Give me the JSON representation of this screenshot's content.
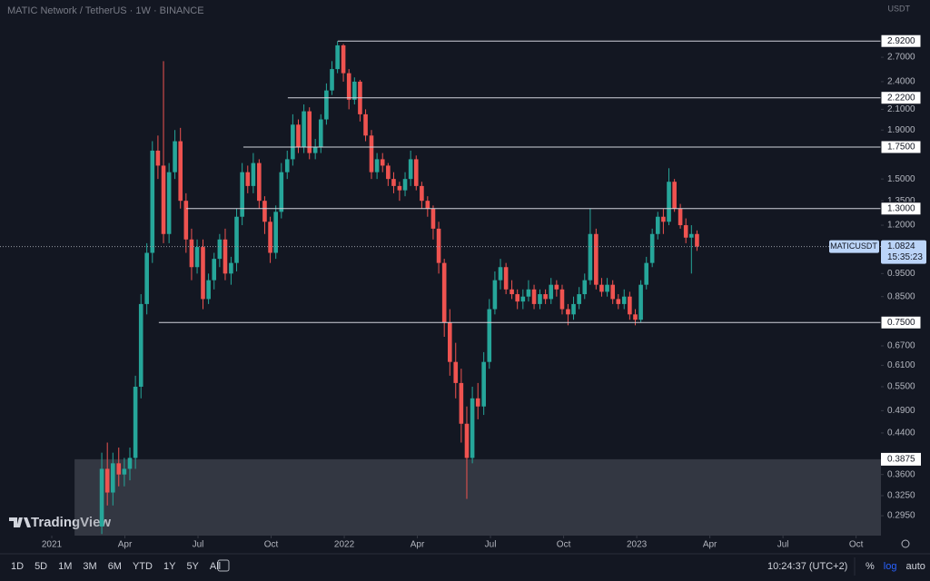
{
  "header": {
    "symbol": "MATIC Network / TetherUS · 1W · BINANCE",
    "currency": "USDT"
  },
  "brand": "TradingView",
  "chart_data": {
    "type": "candlestick",
    "log_scale": true,
    "colors": {
      "up": "#26a69a",
      "down": "#ef5350"
    },
    "xlim": [
      2020.823,
      2023.835
    ],
    "ylim": [
      0.268,
      3.56
    ],
    "xticks": [
      {
        "value": 2021,
        "label": "2021"
      },
      {
        "value": 2021.25,
        "label": "Apr"
      },
      {
        "value": 2021.5,
        "label": "Jul"
      },
      {
        "value": 2021.75,
        "label": "Oct"
      },
      {
        "value": 2022,
        "label": "2022"
      },
      {
        "value": 2022.25,
        "label": "Apr"
      },
      {
        "value": 2022.5,
        "label": "Jul"
      },
      {
        "value": 2022.75,
        "label": "Oct"
      },
      {
        "value": 2023,
        "label": "2023"
      },
      {
        "value": 2023.25,
        "label": "Apr"
      },
      {
        "value": 2023.5,
        "label": "Jul"
      },
      {
        "value": 2023.75,
        "label": "Oct"
      }
    ],
    "yticks": [
      {
        "value": 2.7,
        "label": "2.7000"
      },
      {
        "value": 2.4,
        "label": "2.4000"
      },
      {
        "value": 2.1,
        "label": "2.1000"
      },
      {
        "value": 1.9,
        "label": "1.9000"
      },
      {
        "value": 1.5,
        "label": "1.5000"
      },
      {
        "value": 1.35,
        "label": "1.3500"
      },
      {
        "value": 1.2,
        "label": "1.2000"
      },
      {
        "value": 0.95,
        "label": "0.9500"
      },
      {
        "value": 0.85,
        "label": "0.8500"
      },
      {
        "value": 0.67,
        "label": "0.6700"
      },
      {
        "value": 0.61,
        "label": "0.6100"
      },
      {
        "value": 0.55,
        "label": "0.5500"
      },
      {
        "value": 0.49,
        "label": "0.4900"
      },
      {
        "value": 0.44,
        "label": "0.4400"
      },
      {
        "value": 0.36,
        "label": "0.3600"
      },
      {
        "value": 0.325,
        "label": "0.3250"
      },
      {
        "value": 0.295,
        "label": "0.2950"
      }
    ],
    "x": [
      2021.171,
      2021.19,
      2021.209,
      2021.229,
      2021.248,
      2021.267,
      2021.286,
      2021.305,
      2021.325,
      2021.344,
      2021.363,
      2021.382,
      2021.401,
      2021.421,
      2021.44,
      2021.459,
      2021.478,
      2021.497,
      2021.517,
      2021.536,
      2021.555,
      2021.574,
      2021.593,
      2021.613,
      2021.632,
      2021.651,
      2021.67,
      2021.689,
      2021.709,
      2021.728,
      2021.747,
      2021.766,
      2021.785,
      2021.805,
      2021.824,
      2021.843,
      2021.862,
      2021.881,
      2021.901,
      2021.92,
      2021.939,
      2021.958,
      2021.977,
      2021.997,
      2022.016,
      2022.035,
      2022.054,
      2022.073,
      2022.093,
      2022.112,
      2022.131,
      2022.15,
      2022.169,
      2022.189,
      2022.208,
      2022.227,
      2022.246,
      2022.265,
      2022.285,
      2022.304,
      2022.323,
      2022.342,
      2022.361,
      2022.381,
      2022.4,
      2022.419,
      2022.438,
      2022.457,
      2022.477,
      2022.496,
      2022.515,
      2022.534,
      2022.553,
      2022.573,
      2022.592,
      2022.611,
      2022.63,
      2022.649,
      2022.669,
      2022.688,
      2022.707,
      2022.726,
      2022.745,
      2022.765,
      2022.784,
      2022.803,
      2022.822,
      2022.841,
      2022.861,
      2022.88,
      2022.899,
      2022.918,
      2022.937,
      2022.957,
      2022.976,
      2022.995,
      2023.014,
      2023.033,
      2023.053,
      2023.072,
      2023.091,
      2023.11,
      2023.129,
      2023.149,
      2023.168,
      2023.187,
      2023.206
    ],
    "open": [
      0.28,
      0.37,
      0.33,
      0.38,
      0.36,
      0.37,
      0.39,
      0.55,
      0.82,
      1.05,
      1.72,
      1.6,
      1.15,
      1.55,
      1.8,
      1.35,
      1.12,
      0.98,
      1.08,
      0.84,
      0.92,
      1.02,
      1.12,
      0.95,
      1.0,
      1.25,
      1.55,
      1.45,
      1.62,
      1.35,
      1.22,
      1.05,
      1.28,
      1.55,
      1.65,
      1.95,
      1.75,
      2.08,
      1.7,
      1.75,
      2.0,
      2.3,
      2.55,
      2.86,
      2.5,
      2.2,
      2.4,
      2.05,
      1.85,
      1.55,
      1.65,
      1.6,
      1.5,
      1.45,
      1.42,
      1.5,
      1.65,
      1.45,
      1.35,
      1.3,
      1.18,
      1.0,
      0.75,
      0.62,
      0.56,
      0.46,
      0.39,
      0.52,
      0.5,
      0.62,
      0.8,
      0.92,
      0.98,
      0.88,
      0.86,
      0.83,
      0.85,
      0.88,
      0.82,
      0.86,
      0.84,
      0.9,
      0.88,
      0.8,
      0.78,
      0.82,
      0.86,
      0.92,
      1.15,
      0.9,
      0.87,
      0.9,
      0.84,
      0.82,
      0.85,
      0.78,
      0.76,
      0.9,
      1.0,
      1.15,
      1.25,
      1.22,
      1.48,
      1.3,
      1.2,
      1.13,
      1.15
    ],
    "high": [
      0.4,
      0.42,
      0.4,
      0.41,
      0.39,
      0.41,
      0.58,
      0.86,
      1.1,
      1.8,
      1.85,
      2.65,
      1.62,
      1.9,
      1.92,
      1.4,
      1.18,
      1.12,
      1.12,
      0.95,
      1.05,
      1.15,
      1.18,
      1.03,
      1.3,
      1.62,
      1.6,
      1.7,
      1.65,
      1.38,
      1.25,
      1.32,
      1.62,
      1.72,
      2.05,
      2.0,
      2.15,
      2.12,
      1.82,
      2.05,
      2.38,
      2.65,
      2.92,
      2.88,
      2.55,
      2.45,
      2.42,
      2.1,
      1.9,
      1.7,
      1.7,
      1.62,
      1.55,
      1.48,
      1.55,
      1.72,
      1.68,
      1.48,
      1.38,
      1.32,
      1.22,
      1.02,
      0.8,
      0.68,
      0.6,
      0.5,
      0.55,
      0.56,
      0.65,
      0.84,
      0.96,
      1.02,
      1.0,
      0.92,
      0.88,
      0.88,
      0.92,
      0.9,
      0.88,
      0.88,
      0.93,
      0.92,
      0.9,
      0.82,
      0.85,
      0.89,
      0.95,
      1.3,
      1.18,
      0.93,
      0.93,
      0.92,
      0.86,
      0.88,
      0.87,
      0.8,
      0.92,
      1.03,
      1.18,
      1.28,
      1.3,
      1.58,
      1.5,
      1.33,
      1.24,
      1.2,
      1.17
    ],
    "low": [
      0.27,
      0.31,
      0.31,
      0.34,
      0.34,
      0.35,
      0.37,
      0.52,
      0.78,
      1.0,
      1.5,
      1.1,
      1.1,
      1.5,
      1.3,
      1.05,
      0.92,
      0.95,
      0.8,
      0.82,
      0.88,
      0.98,
      0.92,
      0.9,
      0.96,
      1.2,
      1.4,
      1.4,
      1.3,
      1.15,
      1.0,
      1.02,
      1.24,
      1.5,
      1.6,
      1.7,
      1.7,
      1.65,
      1.65,
      1.7,
      1.95,
      2.25,
      2.5,
      2.4,
      2.1,
      2.15,
      1.98,
      1.8,
      1.5,
      1.5,
      1.55,
      1.45,
      1.4,
      1.35,
      1.38,
      1.45,
      1.42,
      1.3,
      1.25,
      1.12,
      0.95,
      0.7,
      0.58,
      0.52,
      0.42,
      0.32,
      0.38,
      0.47,
      0.48,
      0.6,
      0.78,
      0.88,
      0.86,
      0.84,
      0.8,
      0.8,
      0.83,
      0.8,
      0.8,
      0.82,
      0.82,
      0.85,
      0.78,
      0.74,
      0.76,
      0.8,
      0.84,
      0.9,
      0.88,
      0.85,
      0.85,
      0.82,
      0.8,
      0.8,
      0.76,
      0.74,
      0.75,
      0.88,
      0.98,
      1.12,
      1.15,
      1.2,
      1.28,
      1.18,
      1.1,
      0.95,
      1.06
    ],
    "close": [
      0.37,
      0.33,
      0.38,
      0.36,
      0.37,
      0.39,
      0.55,
      0.82,
      1.05,
      1.72,
      1.6,
      1.15,
      1.55,
      1.8,
      1.35,
      1.12,
      0.98,
      1.08,
      0.84,
      0.92,
      1.02,
      1.12,
      0.95,
      1.0,
      1.25,
      1.55,
      1.45,
      1.62,
      1.35,
      1.22,
      1.05,
      1.28,
      1.55,
      1.65,
      1.95,
      1.75,
      2.08,
      1.7,
      1.75,
      2.0,
      2.3,
      2.55,
      2.86,
      2.5,
      2.2,
      2.4,
      2.05,
      1.85,
      1.55,
      1.65,
      1.6,
      1.5,
      1.45,
      1.42,
      1.5,
      1.65,
      1.45,
      1.35,
      1.3,
      1.18,
      1.0,
      0.75,
      0.62,
      0.56,
      0.46,
      0.39,
      0.52,
      0.5,
      0.62,
      0.8,
      0.92,
      0.98,
      0.88,
      0.86,
      0.83,
      0.85,
      0.88,
      0.82,
      0.86,
      0.84,
      0.9,
      0.88,
      0.8,
      0.78,
      0.82,
      0.86,
      0.92,
      1.15,
      0.9,
      0.87,
      0.9,
      0.84,
      0.82,
      0.85,
      0.78,
      0.76,
      0.9,
      1.0,
      1.15,
      1.25,
      1.22,
      1.48,
      1.3,
      1.2,
      1.13,
      1.15,
      1.0824
    ],
    "levels": [
      {
        "value": 2.92,
        "label": "2.9200",
        "from": 2021.978
      },
      {
        "value": 2.22,
        "label": "2.2200",
        "from": 2021.807
      },
      {
        "value": 1.75,
        "label": "1.7500",
        "from": 2021.655
      },
      {
        "value": 1.3,
        "label": "1.3000",
        "from": 2021.46
      },
      {
        "value": 0.75,
        "label": "0.7500",
        "from": 2021.366
      }
    ],
    "zone": {
      "value": 0.3875,
      "label": "0.3875",
      "from": 2021.078
    },
    "last_price": {
      "name": "MATICUSDT",
      "value": 1.0824,
      "countdown": "15:35:23"
    }
  },
  "toolbar": {
    "ranges": [
      "1D",
      "5D",
      "1M",
      "3M",
      "6M",
      "YTD",
      "1Y",
      "5Y",
      "All"
    ],
    "time": "10:24:37 (UTC+2)",
    "options": [
      "%",
      "log",
      "auto"
    ]
  }
}
